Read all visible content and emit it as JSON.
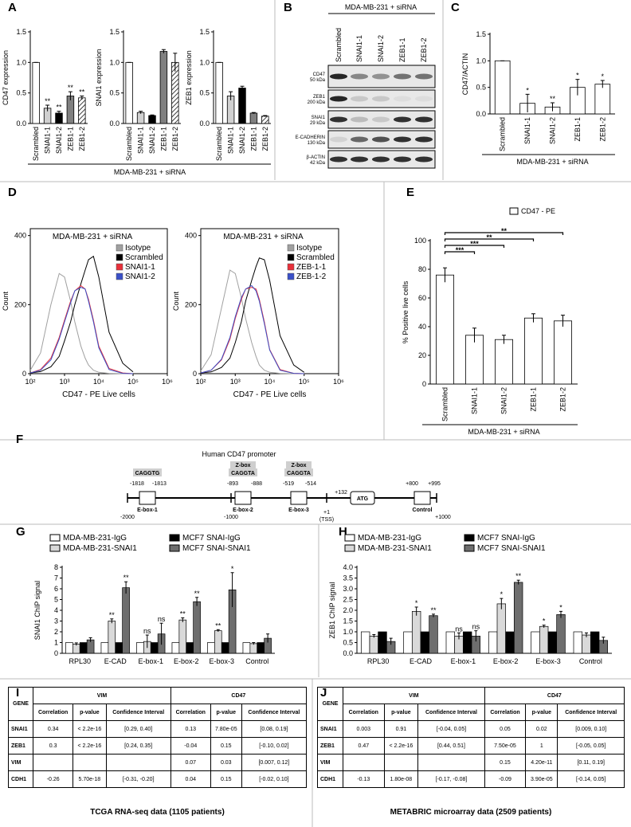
{
  "letters": [
    "A",
    "B",
    "C",
    "D",
    "E",
    "F",
    "G",
    "H",
    "I",
    "J"
  ],
  "panel_a": {
    "xlabel": "MDA-MB-231 + siRNA"
  },
  "blot": {
    "title": "MDA-MB-231 + siRNA",
    "lanes": [
      "Scrambled",
      "SNAI1-1",
      "SNAI1-2",
      "ZEB1-1",
      "ZEB1-2"
    ],
    "rows": [
      {
        "protein": "CD47",
        "size": "50 kDa"
      },
      {
        "protein": "ZEB1",
        "size": "200 kDa"
      },
      {
        "protein": "SNAI1",
        "size": "29 kDa"
      },
      {
        "protein": "E-CADHERIN",
        "size": "130 kDa"
      },
      {
        "protein": "β-ACTIN",
        "size": "42 kDa"
      }
    ]
  },
  "promoter": {
    "title": "Human CD47 promoter",
    "ends": [
      "-2000",
      "-1000",
      "+1000"
    ],
    "sites": [
      {
        "motif": "CAGGTG",
        "start": "-1818",
        "end": "-1813",
        "name": "E-box-1"
      },
      {
        "box": "Z-box",
        "motif": "CAGGTA",
        "start": "-893",
        "end": "-888",
        "name": "E-box-2"
      },
      {
        "box": "Z-box",
        "motif": "CAGGTA",
        "start": "-519",
        "end": "-514",
        "name": "E-box-3"
      },
      {
        "start": "+800",
        "end": "+995",
        "name": "Control"
      }
    ],
    "tss": {
      "position": "+1",
      "label": "(TSS)"
    },
    "atg": {
      "position": "+132",
      "label": "ATG"
    }
  },
  "chart_data": [
    {
      "type": "bar",
      "ylabel": "CD47 expression",
      "categories": [
        "Scrambled",
        "SNAI1-1",
        "SNAI1-2",
        "ZEB1-1",
        "ZEB1-2"
      ],
      "values": [
        1,
        0.25,
        0.17,
        0.45,
        0.42
      ],
      "errors": [
        0,
        0.05,
        0.03,
        0.07,
        0.03
      ],
      "annotations": [
        null,
        "**",
        "**",
        "**",
        "**"
      ],
      "colors": [
        "#ffffff",
        "#d0d0d0",
        "#000000",
        "#808080",
        "#ffffff"
      ],
      "hatched": [
        false,
        false,
        false,
        false,
        true
      ],
      "ylim": [
        0,
        1.5
      ],
      "yticks": [
        {
          "value": 0,
          "label": "0.0"
        },
        0.5,
        {
          "value": 1,
          "label": "1.0"
        },
        1.5
      ]
    },
    {
      "type": "bar",
      "ylabel": "SNAI1 expression",
      "categories": [
        "Scrambled",
        "SNAI1-1",
        "SNAI1-2",
        "ZEB1-1",
        "ZEB1-2"
      ],
      "values": [
        1,
        0.18,
        0.13,
        1.18,
        1.0
      ],
      "errors": [
        0,
        0.02,
        0.01,
        0.03,
        0.15
      ],
      "colors": [
        "#ffffff",
        "#d0d0d0",
        "#000000",
        "#808080",
        "#ffffff"
      ],
      "hatched": [
        false,
        false,
        false,
        false,
        true
      ],
      "ylim": [
        0,
        1.5
      ],
      "yticks": [
        {
          "value": 0,
          "label": "0.0"
        },
        0.5,
        {
          "value": 1,
          "label": "1.0"
        },
        1.5
      ]
    },
    {
      "type": "bar",
      "ylabel": "ZEB1 expression",
      "categories": [
        "Scrambled",
        "SNAI1-1",
        "SNAI1-2",
        "ZEB1-1",
        "ZEB1-2"
      ],
      "values": [
        1,
        0.45,
        0.58,
        0.17,
        0.12
      ],
      "errors": [
        0,
        0.07,
        0.03,
        0.01,
        0.01
      ],
      "colors": [
        "#ffffff",
        "#d0d0d0",
        "#000000",
        "#808080",
        "#ffffff"
      ],
      "hatched": [
        false,
        false,
        false,
        false,
        true
      ],
      "ylim": [
        0,
        1.5
      ],
      "yticks": [
        {
          "value": 0,
          "label": "0.0"
        },
        0.5,
        {
          "value": 1,
          "label": "1.0"
        },
        1.5
      ]
    },
    {
      "type": "bar",
      "ylabel": "CD47/ACTIN",
      "xlabel": "MDA-MB-231 + siRNA",
      "categories": [
        "Scrambled",
        "SNAI1-1",
        "SNAI1-2",
        "ZEB1-1",
        "ZEB1-2"
      ],
      "values": [
        1,
        0.2,
        0.13,
        0.5,
        0.56
      ],
      "errors": [
        0,
        0.17,
        0.08,
        0.15,
        0.07
      ],
      "annotations": [
        null,
        "*",
        "**",
        "*",
        "*"
      ],
      "color": "#ffffff",
      "ylim": [
        0,
        1.5
      ],
      "yticks": [
        {
          "value": 0,
          "label": "0.0"
        },
        0.5,
        {
          "value": 1,
          "label": "1.0"
        },
        1.5
      ]
    },
    {
      "type": "line",
      "title": "MDA-MB-231 + siRNA",
      "xlabel": "CD47 - PE Live cells",
      "ylabel": "Count",
      "xscale": "log",
      "legend": "upper right",
      "xlim": [
        100,
        1000000
      ],
      "xticks": [
        {
          "value": 100,
          "label": "10²"
        },
        {
          "value": 1000,
          "label": "10³"
        },
        {
          "value": 10000,
          "label": "10⁴"
        },
        {
          "value": 100000,
          "label": "10⁵"
        },
        {
          "value": 1000000,
          "label": "10⁶"
        }
      ],
      "ylim": [
        0,
        420
      ],
      "yticks": [
        0,
        200,
        400
      ],
      "x": [
        100,
        200,
        400,
        700,
        1000,
        1500,
        2000,
        3000,
        4000,
        5000,
        7000,
        10000,
        20000,
        50000,
        100000
      ],
      "series": [
        {
          "name": "Isotype",
          "color": "#a0a0a0",
          "values": [
            10,
            60,
            200,
            290,
            280,
            210,
            150,
            80,
            45,
            25,
            10,
            4,
            1,
            0,
            0
          ]
        },
        {
          "name": "Scrambled",
          "color": "#000000",
          "values": [
            2,
            6,
            20,
            50,
            95,
            150,
            200,
            260,
            300,
            330,
            340,
            280,
            120,
            30,
            5
          ]
        },
        {
          "name": "SNAI1-1",
          "color": "#e8303a",
          "values": [
            2,
            12,
            45,
            105,
            155,
            210,
            240,
            255,
            245,
            215,
            155,
            80,
            15,
            2,
            0
          ]
        },
        {
          "name": "SNAI1-2",
          "color": "#3a50c8",
          "values": [
            2,
            10,
            40,
            100,
            150,
            205,
            240,
            250,
            245,
            210,
            150,
            75,
            12,
            1,
            0
          ]
        }
      ]
    },
    {
      "type": "line",
      "title": "MDA-MB-231 + siRNA",
      "xlabel": "CD47 - PE Live cells",
      "ylabel": "Count",
      "xscale": "log",
      "legend": "upper right",
      "xlim": [
        100,
        1000000
      ],
      "xticks": [
        {
          "value": 100,
          "label": "10²"
        },
        {
          "value": 1000,
          "label": "10³"
        },
        {
          "value": 10000,
          "label": "10⁴"
        },
        {
          "value": 100000,
          "label": "10⁵"
        },
        {
          "value": 1000000,
          "label": "10⁶"
        }
      ],
      "ylim": [
        0,
        420
      ],
      "yticks": [
        0,
        200,
        400
      ],
      "x": [
        100,
        200,
        400,
        700,
        1000,
        1500,
        2000,
        3000,
        4000,
        5000,
        7000,
        10000,
        20000,
        50000,
        100000
      ],
      "series": [
        {
          "name": "Isotype",
          "color": "#a0a0a0",
          "values": [
            8,
            55,
            190,
            300,
            290,
            220,
            160,
            90,
            50,
            25,
            10,
            4,
            1,
            0,
            0
          ]
        },
        {
          "name": "Scrambled",
          "color": "#000000",
          "values": [
            2,
            5,
            18,
            45,
            90,
            150,
            210,
            270,
            310,
            335,
            330,
            270,
            110,
            25,
            4
          ]
        },
        {
          "name": "ZEB-1-1",
          "color": "#e8303a",
          "values": [
            2,
            10,
            40,
            100,
            160,
            215,
            245,
            250,
            245,
            215,
            150,
            70,
            12,
            1,
            0
          ]
        },
        {
          "name": "ZEB-1-2",
          "color": "#3a50c8",
          "values": [
            2,
            10,
            42,
            105,
            165,
            220,
            245,
            255,
            240,
            210,
            145,
            68,
            10,
            1,
            0
          ]
        }
      ]
    },
    {
      "type": "bar",
      "ylabel": "% Positive live cells",
      "xlabel": "MDA-MB-231 + siRNA",
      "legend": "upper right",
      "categories": [
        "Scrambled",
        "SNAI1-1",
        "SNAI1-2",
        "ZEB1-1",
        "ZEB1-2"
      ],
      "series": [
        {
          "name": "CD47 - PE",
          "color": "#ffffff",
          "values": [
            76,
            34,
            31,
            46,
            44
          ],
          "errors": [
            5,
            5,
            3,
            3,
            4
          ]
        }
      ],
      "ylim": [
        0,
        100
      ],
      "yticks": [
        0,
        20,
        40,
        60,
        80,
        100
      ],
      "comparisons": [
        {
          "pair": [
            0,
            4
          ],
          "label": "**"
        },
        {
          "pair": [
            0,
            3
          ],
          "label": "**"
        },
        {
          "pair": [
            0,
            2
          ],
          "label": "***"
        },
        {
          "pair": [
            0,
            1
          ],
          "label": "***"
        }
      ]
    },
    {
      "type": "grouped-bar",
      "ylabel": "SNAI1 ChIP signal",
      "legend": "upper left",
      "categories": [
        "RPL30",
        "E-CAD",
        "E-box-1",
        "E-box-2",
        "E-box-3",
        "Control"
      ],
      "ylim": [
        0,
        8
      ],
      "yticks": [
        0,
        1,
        2,
        3,
        4,
        5,
        6,
        7,
        8
      ],
      "series": [
        {
          "name": "MDA-MB-231-IgG",
          "color": "#ffffff",
          "values": [
            1,
            1,
            1,
            1,
            1,
            1
          ]
        },
        {
          "name": "MDA-MB-231-SNAI1",
          "color": "#d9d9d9",
          "values": [
            0.85,
            3.0,
            1.1,
            3.1,
            2.1,
            0.9
          ],
          "errors": [
            0.12,
            0.2,
            0.6,
            0.2,
            0.1,
            0.1
          ],
          "annotations": [
            null,
            "**",
            "ns",
            "**",
            "**",
            null
          ]
        },
        {
          "name": "MCF7 SNAI-IgG",
          "color": "#000000",
          "values": [
            1,
            1,
            1,
            1,
            1,
            1
          ]
        },
        {
          "name": "MCF7 SNAI-SNAI1",
          "color": "#6e6e6e",
          "values": [
            1.25,
            6.1,
            1.8,
            4.8,
            5.9,
            1.4
          ],
          "errors": [
            0.2,
            0.55,
            1.0,
            0.4,
            1.6,
            0.4
          ],
          "annotations": [
            null,
            "**",
            "ns",
            "**",
            "*",
            null
          ]
        }
      ]
    },
    {
      "type": "grouped-bar",
      "ylabel": "ZEB1 ChIP signal",
      "legend": "upper left",
      "categories": [
        "RPL30",
        "E-CAD",
        "E-box-1",
        "E-box-2",
        "E-box-3",
        "Control"
      ],
      "ylim": [
        0,
        4
      ],
      "yticks": [
        {
          "value": 0,
          "label": "0.0"
        },
        0.5,
        {
          "value": 1,
          "label": "1.0"
        },
        1.5,
        {
          "value": 2,
          "label": "2.0"
        },
        2.5,
        {
          "value": 3,
          "label": "3.0"
        },
        3.5,
        {
          "value": 4,
          "label": "4.0"
        }
      ],
      "series": [
        {
          "name": "MDA-MB-231-IgG",
          "color": "#ffffff",
          "values": [
            1,
            1,
            1,
            1,
            1,
            1
          ]
        },
        {
          "name": "MDA-MB-231-SNAI1",
          "color": "#d9d9d9",
          "values": [
            0.8,
            1.95,
            0.8,
            2.3,
            1.25,
            0.85
          ],
          "errors": [
            0.07,
            0.2,
            0.15,
            0.25,
            0.06,
            0.1
          ],
          "annotations": [
            null,
            "*",
            "ns",
            "*",
            "*",
            null
          ]
        },
        {
          "name": "MCF7 SNAI-IgG",
          "color": "#000000",
          "values": [
            1,
            1,
            1,
            1,
            1,
            1
          ]
        },
        {
          "name": "MCF7 SNAI-SNAI1",
          "color": "#6e6e6e",
          "values": [
            0.55,
            1.75,
            0.8,
            3.3,
            1.8,
            0.6
          ],
          "errors": [
            0.15,
            0.07,
            0.25,
            0.1,
            0.15,
            0.15
          ],
          "annotations": [
            null,
            "**",
            "ns",
            "**",
            "*",
            null
          ]
        }
      ]
    }
  ],
  "tables": [
    {
      "columns": [
        "GENE",
        "VIM",
        "CD47"
      ],
      "subcolumns": [
        "Correlation",
        "p-value",
        "Confidence Interval"
      ],
      "rows": [
        [
          "SNAI1",
          "0.34",
          "< 2.2e-16",
          "[0.29, 0.40]",
          "0.13",
          "7.80e-05",
          "[0.08, 0.19]"
        ],
        [
          "ZEB1",
          "0.3",
          "< 2.2e-16",
          "[0.24, 0.35]",
          "-0.04",
          "0.15",
          "[-0.10, 0.02]"
        ],
        [
          "VIM",
          null,
          null,
          null,
          "0.07",
          "0.03",
          "[0.007, 0.12]"
        ],
        [
          "CDH1",
          "-0.26",
          "5.70e-18",
          "[-0.31, -0.20]",
          "0.04",
          "0.15",
          "[-0.02, 0.10]"
        ]
      ],
      "caption": "TCGA RNA-seq data (1105 patients)"
    },
    {
      "columns": [
        "GENE",
        "VIM",
        "CD47"
      ],
      "subcolumns": [
        "Correlation",
        "p-value",
        "Confidence Interval"
      ],
      "rows": [
        [
          "SNAI1",
          "0.003",
          "0.91",
          "[-0.04, 0.05]",
          "0.05",
          "0.02",
          "[0.009, 0.10]"
        ],
        [
          "ZEB1",
          "0.47",
          "< 2.2e-16",
          "[0.44, 0.51]",
          "7.50e-05",
          "1",
          "[-0.05, 0.05]"
        ],
        [
          "VIM",
          null,
          null,
          null,
          "0.15",
          "4.20e-11",
          "[0.11, 0.19]"
        ],
        [
          "CDH1",
          "-0.13",
          "1.80e-08",
          "[-0.17, -0.08]",
          "-0.09",
          "3.90e-05",
          "[-0.14, 0.05]"
        ]
      ],
      "caption": "METABRIC microarray data (2509 patients)"
    }
  ]
}
